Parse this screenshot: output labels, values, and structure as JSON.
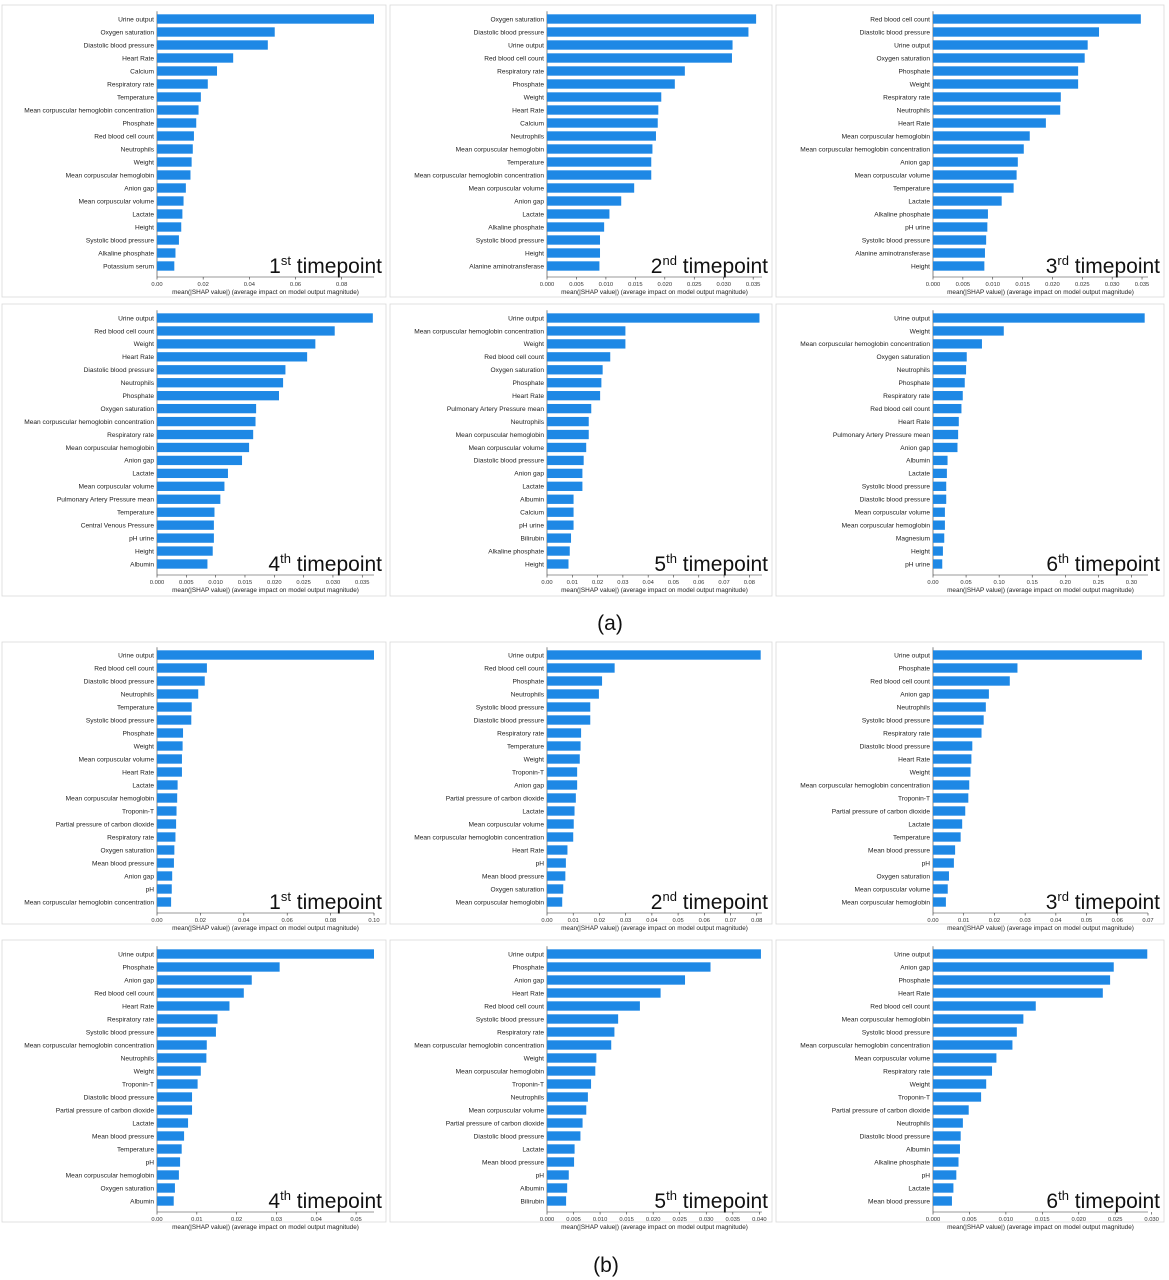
{
  "colors": {
    "bar": "#1E88E5",
    "axis": "#333333",
    "frame": "#d9d9d9"
  },
  "panel_labels": [
    "(a)",
    "(b)"
  ],
  "x_axis_label": "mean(|SHAP value|) (average impact on model output magnitude)",
  "chart_data": [
    {
      "type": "bar",
      "orientation": "horizontal",
      "panel": "(a)",
      "timepoint_ord": "1",
      "timepoint_sup": "st",
      "timepoint_text": "timepoint",
      "xlabel": "mean(|SHAP value|) (average impact on model output magnitude)",
      "xlim": [
        0,
        0.094
      ],
      "xticks": [
        "0.00",
        "0.02",
        "0.04",
        "0.06",
        "0.08"
      ],
      "features": [
        "Urine output",
        "Oxygen saturation",
        "Diastolic blood pressure",
        "Heart Rate",
        "Calcium",
        "Respiratory rate",
        "Temperature",
        "Mean corpuscular hemoglobin concentration",
        "Phosphate",
        "Red blood cell count",
        "Neutrophils",
        "Weight",
        "Mean corpuscular hemoglobin",
        "Anion gap",
        "Mean corpuscular volume",
        "Lactate",
        "Height",
        "Systolic blood pressure",
        "Alkaline phosphate",
        "Potassium serum"
      ],
      "values": [
        0.094,
        0.051,
        0.048,
        0.033,
        0.026,
        0.022,
        0.019,
        0.018,
        0.017,
        0.016,
        0.0155,
        0.015,
        0.0145,
        0.0125,
        0.0115,
        0.011,
        0.0105,
        0.0095,
        0.008,
        0.0075
      ]
    },
    {
      "type": "bar",
      "orientation": "horizontal",
      "panel": "(a)",
      "timepoint_ord": "2",
      "timepoint_sup": "nd",
      "timepoint_text": "timepoint",
      "xlabel": "mean(|SHAP value|) (average impact on model output magnitude)",
      "xlim": [
        0,
        0.0365
      ],
      "xticks": [
        "0.000",
        "0.005",
        "0.010",
        "0.015",
        "0.020",
        "0.025",
        "0.030",
        "0.035"
      ],
      "features": [
        "Oxygen saturation",
        "Diastolic blood pressure",
        "Urine output",
        "Red blood cell count",
        "Respiratory rate",
        "Phosphate",
        "Weight",
        "Heart Rate",
        "Calcium",
        "Neutrophils",
        "Mean corpuscular hemoglobin",
        "Temperature",
        "Mean corpuscular hemoglobin concentration",
        "Mean corpuscular volume",
        "Anion gap",
        "Lactate",
        "Alkaline phosphate",
        "Systolic blood pressure",
        "Height",
        "Alanine aminotransferase"
      ],
      "values": [
        0.0355,
        0.0342,
        0.0315,
        0.0314,
        0.0234,
        0.0217,
        0.0194,
        0.0189,
        0.0188,
        0.0185,
        0.0179,
        0.0177,
        0.0177,
        0.0148,
        0.0126,
        0.0106,
        0.0097,
        0.009,
        0.009,
        0.0089
      ]
    },
    {
      "type": "bar",
      "orientation": "horizontal",
      "panel": "(a)",
      "timepoint_ord": "3",
      "timepoint_sup": "rd",
      "timepoint_text": "timepoint",
      "xlabel": "mean(|SHAP value|) (average impact on model output magnitude)",
      "xlim": [
        0,
        0.036
      ],
      "xticks": [
        "0.000",
        "0.005",
        "0.010",
        "0.015",
        "0.020",
        "0.025",
        "0.030",
        "0.035"
      ],
      "features": [
        "Red blood cell count",
        "Diastolic blood pressure",
        "Urine output",
        "Oxygen saturation",
        "Phosphate",
        "Weight",
        "Respiratory rate",
        "Neutrophils",
        "Heart Rate",
        "Mean corpuscular hemoglobin",
        "Mean corpuscular hemoglobin concentration",
        "Anion gap",
        "Mean corpuscular volume",
        "Temperature",
        "Lactate",
        "Alkaline phosphate",
        "pH urine",
        "Systolic blood pressure",
        "Alanine aminotransferase",
        "Height"
      ],
      "values": [
        0.0348,
        0.0278,
        0.0259,
        0.0254,
        0.0243,
        0.0243,
        0.0214,
        0.0213,
        0.0189,
        0.0162,
        0.0152,
        0.0142,
        0.014,
        0.0135,
        0.0115,
        0.0092,
        0.0091,
        0.0089,
        0.0087,
        0.0086
      ]
    },
    {
      "type": "bar",
      "orientation": "horizontal",
      "panel": "(a)",
      "timepoint_ord": "4",
      "timepoint_sup": "th",
      "timepoint_text": "timepoint",
      "xlabel": "mean(|SHAP value|) (average impact on model output magnitude)",
      "xlim": [
        0,
        0.037
      ],
      "xticks": [
        "0.000",
        "0.005",
        "0.010",
        "0.015",
        "0.020",
        "0.025",
        "0.030",
        "0.035"
      ],
      "features": [
        "Urine output",
        "Red blood cell count",
        "Weight",
        "Heart Rate",
        "Diastolic blood pressure",
        "Neutrophils",
        "Phosphate",
        "Oxygen saturation",
        "Mean corpuscular hemoglobin concentration",
        "Respiratory rate",
        "Mean corpuscular hemoglobin",
        "Anion gap",
        "Lactate",
        "Mean corpuscular volume",
        "Pulmonary Artery Pressure mean",
        "Temperature",
        "Central Venous Pressure",
        "pH urine",
        "Height",
        "Albumin"
      ],
      "values": [
        0.0368,
        0.0303,
        0.027,
        0.0256,
        0.0219,
        0.0215,
        0.0208,
        0.0169,
        0.0168,
        0.0164,
        0.0157,
        0.0145,
        0.0121,
        0.0115,
        0.0108,
        0.0098,
        0.0097,
        0.0097,
        0.0095,
        0.0086
      ]
    },
    {
      "type": "bar",
      "orientation": "horizontal",
      "panel": "(a)",
      "timepoint_ord": "5",
      "timepoint_sup": "th",
      "timepoint_text": "timepoint",
      "xlabel": "mean(|SHAP value|) (average impact on model output magnitude)",
      "xlim": [
        0,
        0.085
      ],
      "xticks": [
        "0.00",
        "0.01",
        "0.02",
        "0.03",
        "0.04",
        "0.05",
        "0.06",
        "0.07",
        "0.08"
      ],
      "features": [
        "Urine output",
        "Mean corpuscular hemoglobin concentration",
        "Weight",
        "Red blood cell count",
        "Oxygen saturation",
        "Phosphate",
        "Heart Rate",
        "Pulmonary Artery Pressure mean",
        "Neutrophils",
        "Mean corpuscular hemoglobin",
        "Mean corpuscular volume",
        "Diastolic blood pressure",
        "Anion gap",
        "Lactate",
        "Albumin",
        "Calcium",
        "pH urine",
        "Bilirubin",
        "Alkaline phosphate",
        "Height"
      ],
      "values": [
        0.084,
        0.031,
        0.031,
        0.025,
        0.022,
        0.0215,
        0.021,
        0.0175,
        0.0165,
        0.0165,
        0.0155,
        0.0145,
        0.014,
        0.014,
        0.0105,
        0.0105,
        0.0105,
        0.0095,
        0.009,
        0.0085
      ]
    },
    {
      "type": "bar",
      "orientation": "horizontal",
      "panel": "(a)",
      "timepoint_ord": "6",
      "timepoint_sup": "th",
      "timepoint_text": "timepoint",
      "xlabel": "mean(|SHAP value|) (average impact on model output magnitude)",
      "xlim": [
        0,
        0.325
      ],
      "xticks": [
        "0.00",
        "0.05",
        "0.10",
        "0.15",
        "0.20",
        "0.25",
        "0.30"
      ],
      "features": [
        "Urine output",
        "Weight",
        "Mean corpuscular hemoglobin concentration",
        "Oxygen saturation",
        "Neutrophils",
        "Phosphate",
        "Respiratory rate",
        "Red blood cell count",
        "Heart Rate",
        "Pulmonary Artery Pressure mean",
        "Anion gap",
        "Albumin",
        "Lactate",
        "Systolic blood pressure",
        "Diastolic blood pressure",
        "Mean corpuscular volume",
        "Mean corpuscular hemoglobin",
        "Magnesium",
        "Height",
        "pH urine"
      ],
      "values": [
        0.32,
        0.107,
        0.074,
        0.051,
        0.05,
        0.048,
        0.045,
        0.043,
        0.039,
        0.038,
        0.037,
        0.022,
        0.021,
        0.02,
        0.02,
        0.018,
        0.018,
        0.017,
        0.015,
        0.014
      ]
    },
    {
      "type": "bar",
      "orientation": "horizontal",
      "panel": "(b)",
      "timepoint_ord": "1",
      "timepoint_sup": "st",
      "timepoint_text": "timepoint",
      "xlabel": "mean(|SHAP value|) (average impact on model output magnitude)",
      "xlim": [
        0,
        0.1
      ],
      "xticks": [
        "0.00",
        "0.02",
        "0.04",
        "0.06",
        "0.08",
        "0.10"
      ],
      "features": [
        "Urine output",
        "Red blood cell count",
        "Diastolic blood pressure",
        "Neutrophils",
        "Temperature",
        "Systolic blood pressure",
        "Phosphate",
        "Weight",
        "Mean corpuscular volume",
        "Heart Rate",
        "Lactate",
        "Mean corpuscular hemoglobin",
        "Troponin-T",
        "Partial pressure of carbon dioxide",
        "Respiratory rate",
        "Oxygen saturation",
        "Mean blood pressure",
        "Anion gap",
        "pH",
        "Mean corpuscular hemoglobin concentration"
      ],
      "values": [
        0.1,
        0.023,
        0.022,
        0.019,
        0.016,
        0.0158,
        0.012,
        0.0118,
        0.0115,
        0.0115,
        0.0095,
        0.0093,
        0.009,
        0.0088,
        0.0085,
        0.008,
        0.0078,
        0.007,
        0.0068,
        0.0065
      ]
    },
    {
      "type": "bar",
      "orientation": "horizontal",
      "panel": "(b)",
      "timepoint_ord": "2",
      "timepoint_sup": "nd",
      "timepoint_text": "timepoint",
      "xlabel": "mean(|SHAP value|) (average impact on model output magnitude)",
      "xlim": [
        0,
        0.082
      ],
      "xticks": [
        "0.00",
        "0.01",
        "0.02",
        "0.03",
        "0.04",
        "0.05",
        "0.06",
        "0.07",
        "0.08"
      ],
      "features": [
        "Urine output",
        "Red blood cell count",
        "Phosphate",
        "Neutrophils",
        "Systolic blood pressure",
        "Diastolic blood pressure",
        "Respiratory rate",
        "Temperature",
        "Weight",
        "Troponin-T",
        "Anion gap",
        "Partial pressure of carbon dioxide",
        "Lactate",
        "Mean corpuscular volume",
        "Mean corpuscular hemoglobin concentration",
        "Heart Rate",
        "pH",
        "Mean blood pressure",
        "Oxygen saturation",
        "Mean corpuscular hemoglobin"
      ],
      "values": [
        0.0815,
        0.0258,
        0.021,
        0.0198,
        0.0165,
        0.0165,
        0.013,
        0.0128,
        0.0125,
        0.0115,
        0.0115,
        0.011,
        0.0105,
        0.0102,
        0.01,
        0.0078,
        0.0072,
        0.007,
        0.0062,
        0.0058
      ]
    },
    {
      "type": "bar",
      "orientation": "horizontal",
      "panel": "(b)",
      "timepoint_ord": "3",
      "timepoint_sup": "rd",
      "timepoint_text": "timepoint",
      "xlabel": "mean(|SHAP value|) (average impact on model output magnitude)",
      "xlim": [
        0,
        0.07
      ],
      "xticks": [
        "0.00",
        "0.01",
        "0.02",
        "0.03",
        "0.04",
        "0.05",
        "0.06",
        "0.07"
      ],
      "features": [
        "Urine output",
        "Phosphate",
        "Red blood cell count",
        "Anion gap",
        "Neutrophils",
        "Systolic blood pressure",
        "Respiratory rate",
        "Diastolic blood pressure",
        "Heart Rate",
        "Weight",
        "Mean corpuscular hemoglobin concentration",
        "Troponin-T",
        "Partial pressure of carbon dioxide",
        "Lactate",
        "Temperature",
        "Mean blood pressure",
        "pH",
        "Oxygen saturation",
        "Mean corpuscular volume",
        "Mean corpuscular hemoglobin"
      ],
      "values": [
        0.068,
        0.0275,
        0.025,
        0.0182,
        0.0172,
        0.0165,
        0.0158,
        0.0128,
        0.0125,
        0.0122,
        0.0118,
        0.0115,
        0.0105,
        0.0095,
        0.009,
        0.0072,
        0.0068,
        0.0052,
        0.0048,
        0.0042
      ]
    },
    {
      "type": "bar",
      "orientation": "horizontal",
      "panel": "(b)",
      "timepoint_ord": "4",
      "timepoint_sup": "th",
      "timepoint_text": "timepoint",
      "xlabel": "mean(|SHAP value|) (average impact on model output magnitude)",
      "xlim": [
        0,
        0.0545
      ],
      "xticks": [
        "0.00",
        "0.01",
        "0.02",
        "0.03",
        "0.04",
        "0.05"
      ],
      "features": [
        "Urine output",
        "Phosphate",
        "Anion gap",
        "Red blood cell count",
        "Heart Rate",
        "Respiratory rate",
        "Systolic blood pressure",
        "Mean corpuscular hemoglobin concentration",
        "Neutrophils",
        "Weight",
        "Troponin-T",
        "Diastolic blood pressure",
        "Partial pressure of carbon dioxide",
        "Lactate",
        "Mean blood pressure",
        "Temperature",
        "pH",
        "Mean corpuscular hemoglobin",
        "Oxygen saturation",
        "Albumin"
      ],
      "values": [
        0.0545,
        0.0308,
        0.0238,
        0.0218,
        0.0182,
        0.0152,
        0.0148,
        0.0125,
        0.0124,
        0.011,
        0.0102,
        0.0088,
        0.0088,
        0.0078,
        0.0068,
        0.0062,
        0.0058,
        0.0055,
        0.0045,
        0.0042
      ]
    },
    {
      "type": "bar",
      "orientation": "horizontal",
      "panel": "(b)",
      "timepoint_ord": "5",
      "timepoint_sup": "th",
      "timepoint_text": "timepoint",
      "xlabel": "mean(|SHAP value|) (average impact on model output magnitude)",
      "xlim": [
        0,
        0.0405
      ],
      "xticks": [
        "0.000",
        "0.005",
        "0.010",
        "0.015",
        "0.020",
        "0.025",
        "0.030",
        "0.035",
        "0.040"
      ],
      "features": [
        "Urine output",
        "Phosphate",
        "Anion gap",
        "Heart Rate",
        "Red blood cell count",
        "Systolic blood pressure",
        "Respiratory rate",
        "Mean corpuscular hemoglobin concentration",
        "Weight",
        "Mean corpuscular hemoglobin",
        "Troponin-T",
        "Neutrophils",
        "Mean corpuscular volume",
        "Partial pressure of carbon dioxide",
        "Diastolic blood pressure",
        "Lactate",
        "Mean blood pressure",
        "pH",
        "Albumin",
        "Bilirubin"
      ],
      "values": [
        0.0403,
        0.0308,
        0.026,
        0.0214,
        0.0175,
        0.0134,
        0.0127,
        0.0121,
        0.0093,
        0.0091,
        0.0083,
        0.0077,
        0.0074,
        0.0067,
        0.0063,
        0.0052,
        0.0051,
        0.0041,
        0.0038,
        0.0036
      ]
    },
    {
      "type": "bar",
      "orientation": "horizontal",
      "panel": "(b)",
      "timepoint_ord": "6",
      "timepoint_sup": "th",
      "timepoint_text": "timepoint",
      "xlabel": "mean(|SHAP value|) (average impact on model output magnitude)",
      "xlim": [
        0,
        0.0295
      ],
      "xticks": [
        "0.000",
        "0.005",
        "0.010",
        "0.015",
        "0.020",
        "0.025",
        "0.030"
      ],
      "features": [
        "Urine output",
        "Anion gap",
        "Phosphate",
        "Heart Rate",
        "Red blood cell count",
        "Mean corpuscular hemoglobin",
        "Systolic blood pressure",
        "Mean corpuscular hemoglobin concentration",
        "Mean corpuscular volume",
        "Respiratory rate",
        "Weight",
        "Troponin-T",
        "Partial pressure of carbon dioxide",
        "Neutrophils",
        "Diastolic blood pressure",
        "Albumin",
        "Alkaline phosphate",
        "pH",
        "Lactate",
        "Mean blood pressure"
      ],
      "values": [
        0.0294,
        0.0248,
        0.0243,
        0.0233,
        0.0141,
        0.0124,
        0.0115,
        0.0109,
        0.0087,
        0.0081,
        0.0073,
        0.0066,
        0.0049,
        0.0041,
        0.0038,
        0.0037,
        0.0035,
        0.0032,
        0.0028,
        0.0026
      ]
    }
  ]
}
